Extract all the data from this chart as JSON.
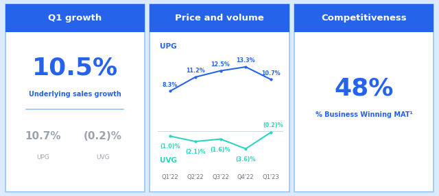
{
  "panel1_title": "Q1 growth",
  "panel1_big_value": "10.5%",
  "panel1_sub_label": "Underlying sales growth",
  "panel1_val1": "10.7%",
  "panel1_lab1": "UPG",
  "panel1_val2": "(0.2)%",
  "panel1_lab2": "UVG",
  "panel2_title": "Price and volume",
  "upg_label": "UPG",
  "uvg_label": "UVG",
  "x_labels": [
    "Q1'22",
    "Q2'22",
    "Q3'22",
    "Q4'22",
    "Q1'23"
  ],
  "upg_values": [
    8.3,
    11.2,
    12.5,
    13.3,
    10.7
  ],
  "upg_labels": [
    "8.3%",
    "11.2%",
    "12.5%",
    "13.3%",
    "10.7%"
  ],
  "uvg_values": [
    -1.0,
    -2.1,
    -1.6,
    -3.6,
    -0.2
  ],
  "uvg_labels": [
    "(1.0)%",
    "(2.1)%",
    "(1.6)%",
    "(3.6)%",
    "(0.2)%"
  ],
  "panel3_title": "Competitiveness",
  "panel3_big_value": "48%",
  "panel3_sub_label": "% Business Winning MAT¹",
  "header_bg": "#2563EB",
  "header_text": "#FFFFFF",
  "panel_bg": "#FFFFFF",
  "panel_border": "#93C5FD",
  "outer_bg": "#DBEAFE",
  "blue_text": "#2563EB",
  "gray_text": "#9CA3AF",
  "upg_color": "#2563EB",
  "uvg_color": "#2DD4BF",
  "divider_color": "#93C5FD",
  "header_fontsize": 9.5,
  "big_fontsize": 26,
  "sub_fontsize": 7,
  "small_val_fontsize": 11,
  "small_lab_fontsize": 6.5,
  "line_label_fontsize": 5.8,
  "axis_label_fontsize": 6
}
